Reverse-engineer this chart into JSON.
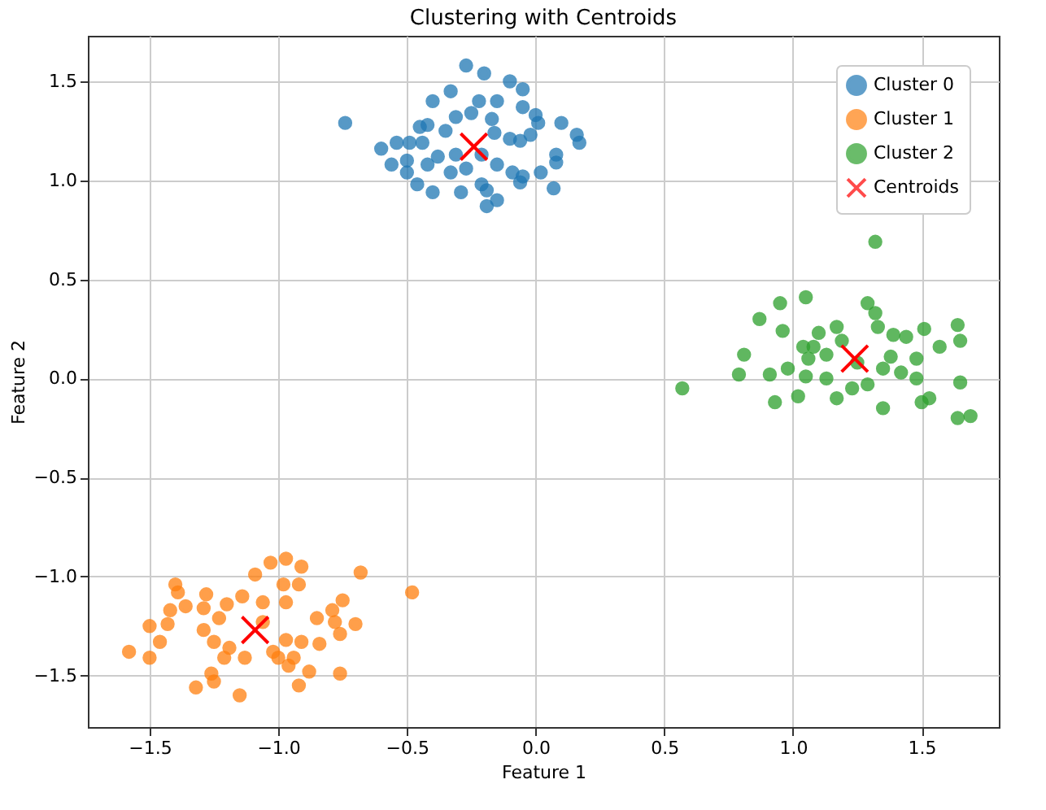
{
  "chart_data": {
    "type": "scatter",
    "title": "Clustering with Centroids",
    "xlabel": "Feature 1",
    "ylabel": "Feature 2",
    "xlim": [
      -1.74,
      1.8
    ],
    "ylim": [
      -1.76,
      1.73
    ],
    "xticks": [
      {
        "value": -1.5,
        "label": "−1.5"
      },
      {
        "value": -1,
        "label": "−1.0"
      },
      {
        "value": -0.5,
        "label": "−0.5"
      },
      {
        "value": 0,
        "label": "0.0"
      },
      {
        "value": 0.5,
        "label": "0.5"
      },
      {
        "value": 1,
        "label": "1.0"
      },
      {
        "value": 1.5,
        "label": "1.5"
      }
    ],
    "yticks": [
      {
        "value": -1.5,
        "label": "−1.5"
      },
      {
        "value": -1,
        "label": "−1.0"
      },
      {
        "value": -0.5,
        "label": "−0.5"
      },
      {
        "value": 0,
        "label": "0.0"
      },
      {
        "value": 0.5,
        "label": "0.5"
      },
      {
        "value": 1,
        "label": "1.0"
      },
      {
        "value": 1.5,
        "label": "1.5"
      }
    ],
    "grid": true,
    "legend": "top right",
    "series": [
      {
        "name": "Cluster 0",
        "color": "#1f77b4",
        "marker": "circle",
        "x": [
          -0.27,
          -0.2,
          -0.1,
          -0.05,
          -0.33,
          -0.4,
          -0.22,
          -0.15,
          -0.05,
          0.0,
          0.01,
          0.1,
          0.16,
          0.17,
          -0.74,
          -0.6,
          -0.54,
          -0.49,
          -0.45,
          -0.42,
          -0.35,
          -0.31,
          -0.25,
          -0.17,
          -0.16,
          -0.1,
          -0.06,
          -0.02,
          -0.56,
          -0.5,
          -0.42,
          -0.38,
          -0.31,
          -0.21,
          -0.15,
          -0.09,
          -0.05,
          0.02,
          0.08,
          0.08,
          0.07,
          -0.46,
          -0.4,
          -0.29,
          -0.21,
          -0.19,
          -0.19,
          -0.15,
          -0.06,
          -0.5,
          -0.44,
          -0.27,
          -0.33
        ],
        "values": [
          1.58,
          1.54,
          1.5,
          1.46,
          1.45,
          1.4,
          1.4,
          1.4,
          1.37,
          1.33,
          1.29,
          1.29,
          1.23,
          1.19,
          1.29,
          1.16,
          1.19,
          1.19,
          1.27,
          1.28,
          1.25,
          1.32,
          1.34,
          1.31,
          1.24,
          1.21,
          1.2,
          1.23,
          1.08,
          1.1,
          1.08,
          1.12,
          1.13,
          1.13,
          1.08,
          1.04,
          1.02,
          1.04,
          1.13,
          1.09,
          0.96,
          0.98,
          0.94,
          0.94,
          0.98,
          0.95,
          0.87,
          0.9,
          0.99,
          1.04,
          1.19,
          1.06,
          1.04
        ]
      },
      {
        "name": "Cluster 1",
        "color": "#ff7f0e",
        "marker": "circle",
        "x": [
          -0.97,
          -1.03,
          -0.91,
          -0.68,
          -0.48,
          -1.09,
          -0.98,
          -0.92,
          -1.4,
          -1.39,
          -0.75,
          -1.14,
          -1.06,
          -0.97,
          -0.79,
          -0.85,
          -0.78,
          -0.7,
          -1.36,
          -1.42,
          -1.29,
          -1.5,
          -1.58,
          -1.5,
          -1.46,
          -1.43,
          -1.29,
          -1.23,
          -1.2,
          -1.25,
          -1.19,
          -1.21,
          -1.13,
          -1.02,
          -0.97,
          -0.91,
          -0.84,
          -0.76,
          -0.94,
          -1.0,
          -1.26,
          -1.32,
          -1.25,
          -1.15,
          -0.96,
          -0.88,
          -0.92,
          -0.76,
          -1.06,
          -1.28
        ],
        "values": [
          -0.91,
          -0.93,
          -0.95,
          -0.98,
          -1.08,
          -0.99,
          -1.04,
          -1.04,
          -1.04,
          -1.08,
          -1.12,
          -1.1,
          -1.13,
          -1.13,
          -1.17,
          -1.21,
          -1.23,
          -1.24,
          -1.15,
          -1.17,
          -1.16,
          -1.25,
          -1.38,
          -1.41,
          -1.33,
          -1.24,
          -1.27,
          -1.21,
          -1.14,
          -1.33,
          -1.36,
          -1.41,
          -1.41,
          -1.38,
          -1.32,
          -1.33,
          -1.34,
          -1.29,
          -1.41,
          -1.41,
          -1.49,
          -1.56,
          -1.53,
          -1.6,
          -1.45,
          -1.48,
          -1.55,
          -1.49,
          -1.23,
          -1.09
        ]
      },
      {
        "name": "Cluster 2",
        "color": "#2ca02c",
        "marker": "circle",
        "x": [
          1.32,
          1.05,
          0.95,
          0.87,
          0.96,
          0.81,
          0.79,
          0.57,
          0.91,
          0.93,
          1.02,
          0.98,
          1.04,
          1.1,
          1.17,
          1.29,
          1.32,
          1.33,
          1.39,
          1.44,
          1.51,
          1.57,
          1.64,
          1.65,
          1.48,
          1.48,
          1.65,
          1.53,
          1.5,
          1.35,
          1.64,
          1.69,
          1.17,
          1.23,
          1.29,
          1.13,
          1.05,
          1.06,
          1.13,
          1.19,
          1.25,
          1.38,
          1.42,
          1.35,
          1.08
        ],
        "values": [
          0.69,
          0.41,
          0.38,
          0.3,
          0.24,
          0.12,
          0.02,
          -0.05,
          0.02,
          -0.12,
          -0.09,
          0.05,
          0.16,
          0.23,
          0.26,
          0.38,
          0.33,
          0.26,
          0.22,
          0.21,
          0.25,
          0.16,
          0.27,
          0.19,
          0.1,
          0.0,
          -0.02,
          -0.1,
          -0.12,
          -0.15,
          -0.2,
          -0.19,
          -0.1,
          -0.05,
          -0.03,
          0.0,
          0.01,
          0.1,
          0.12,
          0.19,
          0.08,
          0.11,
          0.03,
          0.05,
          0.16
        ]
      },
      {
        "name": "Centroids",
        "color": "#ff0000",
        "marker": "cross",
        "x": [
          -0.24,
          -1.09,
          1.24
        ],
        "values": [
          1.17,
          -1.27,
          0.1
        ]
      }
    ]
  }
}
